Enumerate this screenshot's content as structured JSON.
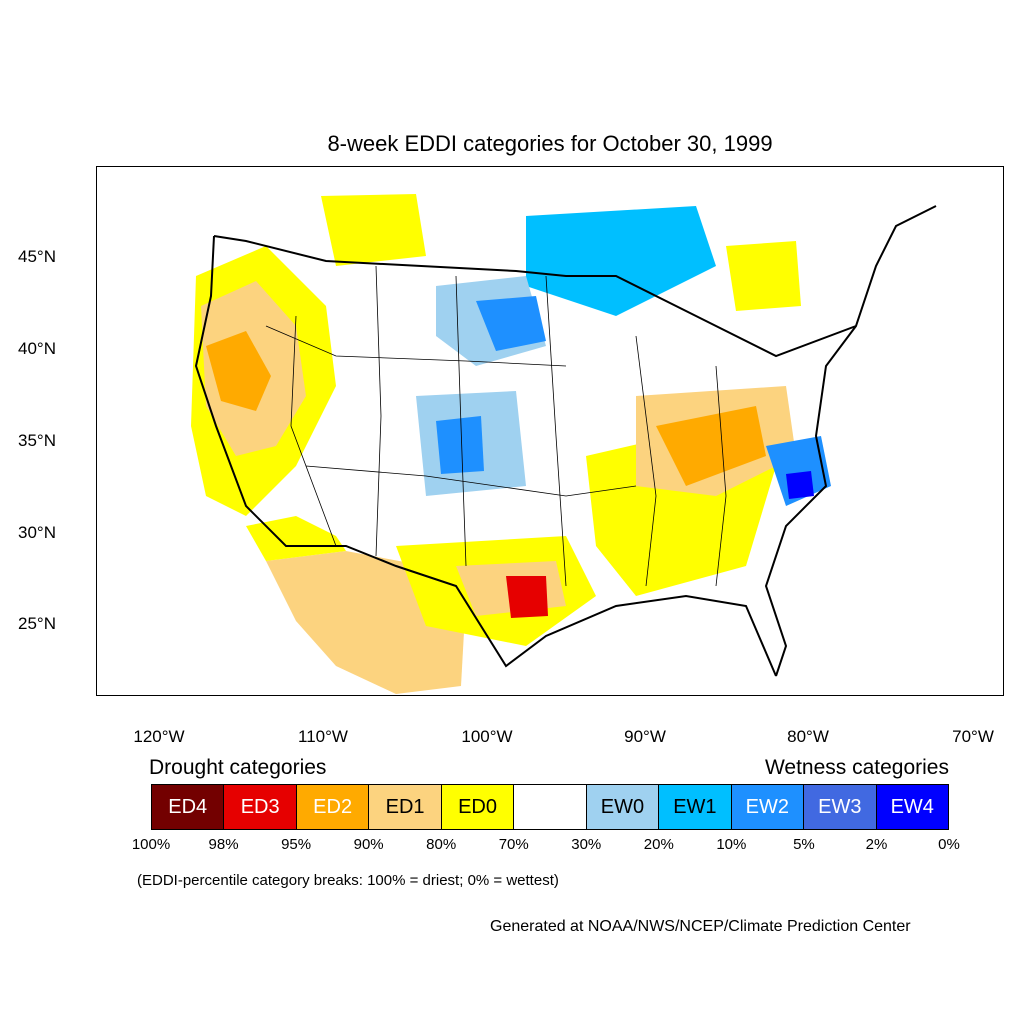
{
  "title": "8-week EDDI categories for October 30, 1999",
  "lat_labels": [
    "45°N",
    "40°N",
    "35°N",
    "30°N",
    "25°N"
  ],
  "lon_labels": [
    "120°W",
    "110°W",
    "100°W",
    "90°W",
    "80°W",
    "70°W"
  ],
  "legend": {
    "drought_heading": "Drought categories",
    "wetness_heading": "Wetness categories",
    "categories": [
      {
        "label": "ED4",
        "color": "#730000",
        "text_color": "#ffffff"
      },
      {
        "label": "ED3",
        "color": "#e60000",
        "text_color": "#ffffff"
      },
      {
        "label": "ED2",
        "color": "#ffaa00",
        "text_color": "#ffffff"
      },
      {
        "label": "ED1",
        "color": "#fcd37f",
        "text_color": "#000000"
      },
      {
        "label": "ED0",
        "color": "#ffff00",
        "text_color": "#000000"
      },
      {
        "label": "",
        "color": "#ffffff",
        "text_color": "#000000"
      },
      {
        "label": "EW0",
        "color": "#9fd1f0",
        "text_color": "#000000"
      },
      {
        "label": "EW1",
        "color": "#00bfff",
        "text_color": "#000000"
      },
      {
        "label": "EW2",
        "color": "#1e90ff",
        "text_color": "#ffffff"
      },
      {
        "label": "EW3",
        "color": "#4169e1",
        "text_color": "#ffffff"
      },
      {
        "label": "EW4",
        "color": "#0000ff",
        "text_color": "#ffffff"
      }
    ],
    "breaks": [
      "100%",
      "98%",
      "95%",
      "90%",
      "80%",
      "70%",
      "30%",
      "20%",
      "10%",
      "5%",
      "2%",
      "0%"
    ],
    "note": "(EDDI-percentile category breaks: 100% = driest; 0% = wettest)"
  },
  "credit": "Generated at NOAA/NWS/NCEP/Climate Prediction Center"
}
